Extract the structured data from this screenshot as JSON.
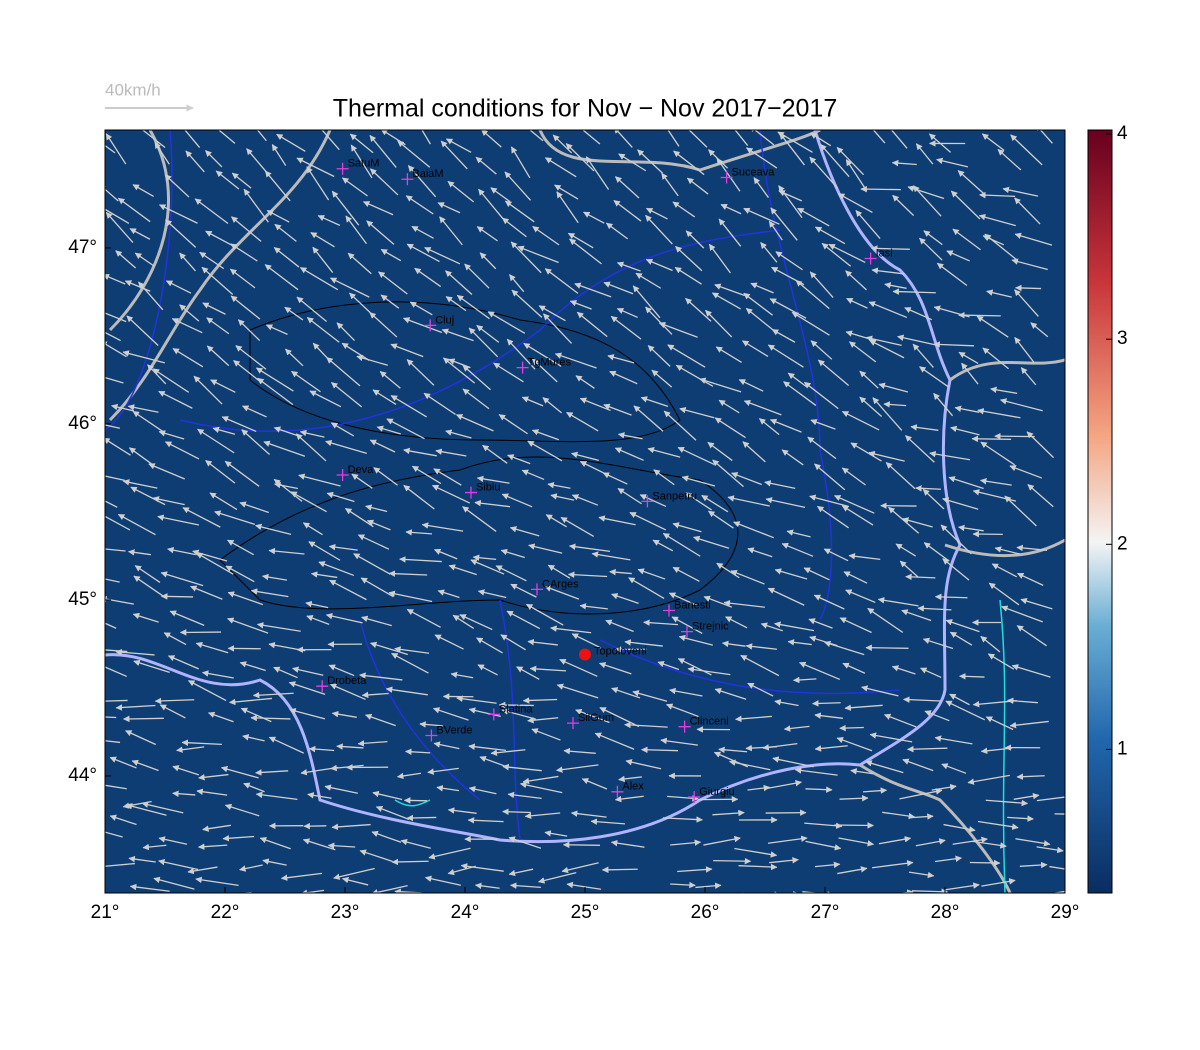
{
  "map": {
    "title": "Thermal conditions for Nov − Nov  2017−2017",
    "scale_label": "40km/h",
    "xlim": [
      21,
      29
    ],
    "ylim": [
      43.335,
      47.67
    ],
    "xticks": [
      {
        "value": 21,
        "label": "21°"
      },
      {
        "value": 22,
        "label": "22°"
      },
      {
        "value": 23,
        "label": "23°"
      },
      {
        "value": 24,
        "label": "24°"
      },
      {
        "value": 25,
        "label": "25°"
      },
      {
        "value": 26,
        "label": "26°"
      },
      {
        "value": 27,
        "label": "27°"
      },
      {
        "value": 28,
        "label": "28°"
      },
      {
        "value": 29,
        "label": "29°"
      }
    ],
    "yticks": [
      {
        "value": 44,
        "label": "44°"
      },
      {
        "value": 45,
        "label": "45°"
      },
      {
        "value": 46,
        "label": "46°"
      },
      {
        "value": 47,
        "label": "47°"
      }
    ],
    "colorbar": {
      "lim": [
        0.3,
        4.02
      ],
      "ticks": [
        1,
        2,
        3,
        4
      ]
    },
    "stations": [
      {
        "name": "SatuM",
        "lon": 22.98,
        "lat": 47.45
      },
      {
        "name": "BaiaM",
        "lon": 23.52,
        "lat": 47.39
      },
      {
        "name": "Suceava",
        "lon": 26.18,
        "lat": 47.4
      },
      {
        "name": "Iasi",
        "lon": 27.38,
        "lat": 46.94
      },
      {
        "name": "Cluj",
        "lon": 23.71,
        "lat": 46.56
      },
      {
        "name": "TgMures",
        "lon": 24.48,
        "lat": 46.32
      },
      {
        "name": "Deva",
        "lon": 22.98,
        "lat": 45.71
      },
      {
        "name": "Sibiu",
        "lon": 24.05,
        "lat": 45.61
      },
      {
        "name": "Sanpetru",
        "lon": 25.52,
        "lat": 45.56
      },
      {
        "name": "CArges",
        "lon": 24.6,
        "lat": 45.06
      },
      {
        "name": "Banesti",
        "lon": 25.7,
        "lat": 44.94
      },
      {
        "name": "Strejnic",
        "lon": 25.85,
        "lat": 44.82
      },
      {
        "name": "Drobeta",
        "lon": 22.81,
        "lat": 44.51
      },
      {
        "name": "Slatina",
        "lon": 24.24,
        "lat": 44.35
      },
      {
        "name": "SilGum",
        "lon": 24.9,
        "lat": 44.3
      },
      {
        "name": "Clinceni",
        "lon": 25.83,
        "lat": 44.28
      },
      {
        "name": "BVerde",
        "lon": 23.72,
        "lat": 44.23
      },
      {
        "name": "Alex",
        "lon": 25.27,
        "lat": 43.91
      },
      {
        "name": "Giurgiu",
        "lon": 25.91,
        "lat": 43.88
      }
    ],
    "site": {
      "name": "Topoloveni",
      "lon": 25.0,
      "lat": 44.69
    }
  }
}
